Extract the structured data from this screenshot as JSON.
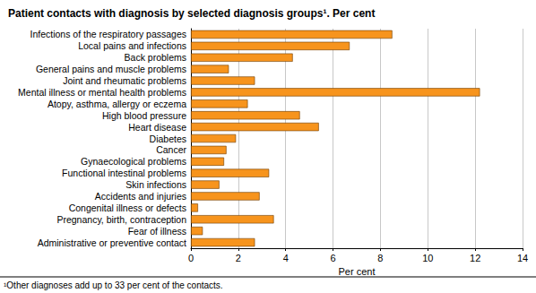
{
  "chart_data": {
    "type": "bar",
    "orientation": "horizontal",
    "title": "Patient contacts with diagnosis by selected diagnosis groups¹. Per cent",
    "x_label": "Per cent",
    "annotations": [
      "¹Other diagnoses add up to 33 per cent of the contacts."
    ],
    "categories": [
      "Infections of the respiratory passages",
      "Local pains and infections",
      "Back problems",
      "General pains and muscle problems",
      "Joint and rheumatic problems",
      "Mental illness or mental health problems",
      "Atopy, asthma, allergy or eczema",
      "High blood pressure",
      "Heart disease",
      "Diabetes",
      "Cancer",
      "Gynaecological problems",
      "Functional intestinal problems",
      "Skin infections",
      "Accidents and injuries",
      "Congenital illness or defects",
      "Pregnancy, birth, contraception",
      "Fear of illness",
      "Administrative or preventive contact"
    ],
    "values": [
      8.5,
      6.7,
      4.3,
      1.6,
      2.7,
      12.2,
      2.4,
      4.6,
      5.4,
      1.9,
      1.5,
      1.4,
      3.3,
      1.2,
      2.9,
      0.3,
      3.5,
      0.5,
      2.7
    ],
    "color": "#f7941d",
    "xlim": [
      0,
      14
    ],
    "xticks": [
      0,
      2,
      4,
      6,
      8,
      10,
      12,
      14
    ],
    "grid": true
  }
}
